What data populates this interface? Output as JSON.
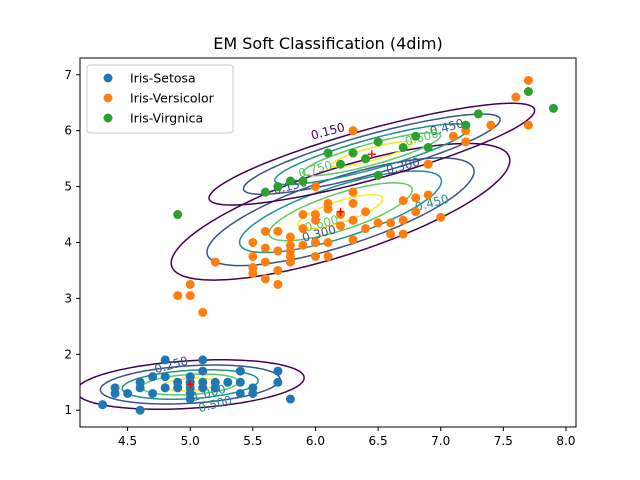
{
  "chart_data": {
    "type": "scatter",
    "title": "EM Soft Classification (4dim)",
    "xlabel": "",
    "ylabel": "",
    "xlim": [
      4.12,
      8.08
    ],
    "ylim": [
      0.7,
      7.3
    ],
    "x_ticks": [
      "4.5",
      "5.0",
      "5.5",
      "6.0",
      "6.5",
      "7.0",
      "7.5",
      "8.0"
    ],
    "y_ticks": [
      "1",
      "2",
      "3",
      "4",
      "5",
      "6",
      "7"
    ],
    "grid": false,
    "legend_position": "top-left",
    "series": [
      {
        "name": "Iris-Setosa",
        "color": "#1f77b4",
        "points": [
          [
            4.3,
            1.1
          ],
          [
            4.4,
            1.3
          ],
          [
            4.4,
            1.4
          ],
          [
            4.5,
            1.3
          ],
          [
            4.6,
            1.0
          ],
          [
            4.6,
            1.4
          ],
          [
            4.6,
            1.5
          ],
          [
            4.7,
            1.3
          ],
          [
            4.7,
            1.6
          ],
          [
            4.8,
            1.4
          ],
          [
            4.8,
            1.6
          ],
          [
            4.8,
            1.9
          ],
          [
            4.9,
            1.4
          ],
          [
            4.9,
            1.5
          ],
          [
            5.0,
            1.2
          ],
          [
            5.0,
            1.3
          ],
          [
            5.0,
            1.4
          ],
          [
            5.0,
            1.5
          ],
          [
            5.0,
            1.6
          ],
          [
            5.1,
            1.4
          ],
          [
            5.1,
            1.5
          ],
          [
            5.1,
            1.7
          ],
          [
            5.1,
            1.9
          ],
          [
            5.2,
            1.4
          ],
          [
            5.2,
            1.5
          ],
          [
            5.3,
            1.5
          ],
          [
            5.4,
            1.3
          ],
          [
            5.4,
            1.5
          ],
          [
            5.4,
            1.7
          ],
          [
            5.5,
            1.3
          ],
          [
            5.5,
            1.4
          ],
          [
            5.7,
            1.5
          ],
          [
            5.7,
            1.7
          ],
          [
            5.8,
            1.2
          ]
        ]
      },
      {
        "name": "Iris-Versicolor",
        "color": "#ff7f0e",
        "points": [
          [
            4.9,
            3.05
          ],
          [
            5.0,
            3.05
          ],
          [
            5.0,
            3.25
          ],
          [
            5.1,
            2.75
          ],
          [
            5.2,
            3.65
          ],
          [
            5.5,
            3.45
          ],
          [
            5.5,
            3.55
          ],
          [
            5.5,
            3.75
          ],
          [
            5.5,
            4.0
          ],
          [
            5.6,
            3.35
          ],
          [
            5.6,
            3.65
          ],
          [
            5.6,
            3.9
          ],
          [
            5.6,
            4.2
          ],
          [
            5.7,
            3.25
          ],
          [
            5.7,
            3.5
          ],
          [
            5.7,
            3.85
          ],
          [
            5.7,
            4.2
          ],
          [
            5.8,
            3.65
          ],
          [
            5.8,
            3.75
          ],
          [
            5.8,
            3.85
          ],
          [
            5.8,
            3.95
          ],
          [
            5.8,
            4.1
          ],
          [
            5.9,
            3.95
          ],
          [
            5.9,
            4.25
          ],
          [
            5.9,
            4.5
          ],
          [
            6.0,
            3.75
          ],
          [
            6.0,
            4.0
          ],
          [
            6.0,
            4.4
          ],
          [
            6.0,
            4.5
          ],
          [
            6.0,
            5.0
          ],
          [
            6.1,
            3.75
          ],
          [
            6.1,
            4.0
          ],
          [
            6.1,
            4.6
          ],
          [
            6.1,
            4.7
          ],
          [
            6.2,
            4.3
          ],
          [
            6.2,
            4.5
          ],
          [
            6.3,
            4.05
          ],
          [
            6.3,
            4.4
          ],
          [
            6.3,
            4.7
          ],
          [
            6.3,
            4.9
          ],
          [
            6.3,
            6.0
          ],
          [
            6.4,
            4.25
          ],
          [
            6.4,
            4.55
          ],
          [
            6.5,
            4.35
          ],
          [
            6.6,
            4.15
          ],
          [
            6.6,
            4.35
          ],
          [
            6.7,
            4.15
          ],
          [
            6.7,
            4.4
          ],
          [
            6.7,
            4.75
          ],
          [
            6.8,
            4.55
          ],
          [
            6.8,
            4.8
          ],
          [
            6.9,
            4.85
          ],
          [
            6.9,
            5.4
          ],
          [
            7.0,
            4.45
          ],
          [
            7.1,
            5.9
          ],
          [
            7.2,
            5.8
          ],
          [
            7.2,
            6.0
          ],
          [
            7.4,
            6.1
          ],
          [
            7.6,
            6.6
          ],
          [
            7.7,
            6.1
          ],
          [
            7.7,
            6.9
          ]
        ]
      },
      {
        "name": "Iris-Virgnica",
        "color": "#2ca02c",
        "points": [
          [
            4.9,
            4.5
          ],
          [
            5.6,
            4.9
          ],
          [
            5.7,
            5.0
          ],
          [
            5.8,
            5.1
          ],
          [
            5.9,
            5.1
          ],
          [
            6.1,
            5.6
          ],
          [
            6.2,
            5.4
          ],
          [
            6.3,
            5.6
          ],
          [
            6.4,
            5.5
          ],
          [
            6.5,
            5.2
          ],
          [
            6.5,
            5.8
          ],
          [
            6.7,
            5.7
          ],
          [
            6.8,
            5.9
          ],
          [
            6.9,
            5.7
          ],
          [
            7.2,
            6.1
          ],
          [
            7.3,
            6.3
          ],
          [
            7.7,
            6.7
          ],
          [
            7.9,
            6.4
          ]
        ]
      }
    ],
    "components": [
      {
        "center": [
          5.0,
          1.46
        ],
        "sx": 0.35,
        "sy": 0.17,
        "rho": 0.27
      },
      {
        "center": [
          6.2,
          4.55
        ],
        "sx": 0.52,
        "sy": 0.47,
        "rho": 0.75
      },
      {
        "center": [
          6.45,
          5.58
        ],
        "sx": 0.5,
        "sy": 0.35,
        "rho": 0.86
      }
    ],
    "contour_colors": [
      "#440154",
      "#3b528b",
      "#21918c",
      "#5ec962",
      "#fde725"
    ],
    "contour_labels": [
      {
        "text": "0.150",
        "x": 6.1,
        "y": 5.98,
        "color": "#440154"
      },
      {
        "text": "0.150",
        "x": 5.8,
        "y": 5.0,
        "color": "#3b528b"
      },
      {
        "text": "0.300",
        "x": 6.03,
        "y": 4.15,
        "color": "#3b528b"
      },
      {
        "text": "0.300",
        "x": 6.7,
        "y": 5.36,
        "color": "#3b528b"
      },
      {
        "text": "0.450",
        "x": 7.05,
        "y": 6.05,
        "color": "#3b528b"
      },
      {
        "text": "0.450",
        "x": 6.93,
        "y": 4.7,
        "color": "#21918c"
      },
      {
        "text": "0.600",
        "x": 6.05,
        "y": 4.33,
        "color": "#5ec962"
      },
      {
        "text": "0.750",
        "x": 6.0,
        "y": 5.3,
        "color": "#5ec962"
      },
      {
        "text": "0.600",
        "x": 6.85,
        "y": 5.87,
        "color": "#5ec962"
      },
      {
        "text": "0.250",
        "x": 4.85,
        "y": 1.8,
        "color": "#3b528b"
      },
      {
        "text": "1.000",
        "x": 5.15,
        "y": 1.3,
        "color": "#21918c"
      },
      {
        "text": "0.500",
        "x": 5.2,
        "y": 1.1,
        "color": "#21918c"
      }
    ]
  }
}
